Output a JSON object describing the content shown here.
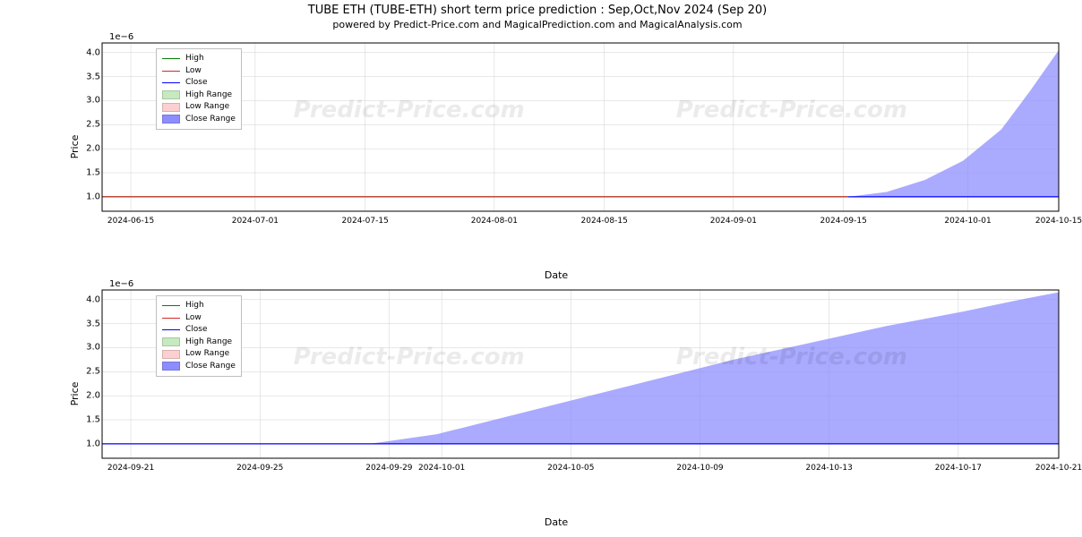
{
  "title": {
    "main": "TUBE ETH (TUBE-ETH) short term price prediction : Sep,Oct,Nov 2024 (Sep 20)",
    "sub": "powered by Predict-Price.com and MagicalPrediction.com and MagicalAnalysis.com",
    "main_fontsize": 13,
    "sub_fontsize": 11
  },
  "watermark": {
    "text_left": "Predict-Price.com",
    "text_right": "Predict-Price.com",
    "color": "rgba(0,0,0,0.08)",
    "fontsize": 26,
    "font_style": "italic",
    "font_weight": "bold"
  },
  "legend": {
    "items": [
      {
        "label": "High",
        "kind": "line",
        "color": "#008000"
      },
      {
        "label": "Low",
        "kind": "line",
        "color": "#d62728"
      },
      {
        "label": "Close",
        "kind": "line",
        "color": "#0000ff"
      },
      {
        "label": "High Range",
        "kind": "patch",
        "color": "#c7e9c0"
      },
      {
        "label": "Low Range",
        "kind": "patch",
        "color": "#fcd0d0"
      },
      {
        "label": "Close Range",
        "kind": "patch",
        "color": "#8d8dff"
      }
    ],
    "border_color": "#bfbfbf",
    "bg_color": "rgba(255,255,255,0.92)",
    "fontsize": 9
  },
  "axis_style": {
    "spine_color": "#000000",
    "grid_color": "#d0d0d0",
    "grid_linewidth": 0.5,
    "tick_fontsize": 10,
    "xtick_fontsize": 9,
    "label_fontsize": 11,
    "bg_color": "#ffffff"
  },
  "panels": [
    {
      "id": "top",
      "type": "line-with-range",
      "ylabel": "Price",
      "xlabel": "Date",
      "y_exponent_label": "1e−6",
      "ylim": [
        0.7,
        4.2
      ],
      "y_ticks": [
        1.0,
        1.5,
        2.0,
        2.5,
        3.0,
        3.5,
        4.0
      ],
      "x_ticks": [
        {
          "pos": 0.03,
          "label": "2024-06-15"
        },
        {
          "pos": 0.16,
          "label": "2024-07-01"
        },
        {
          "pos": 0.275,
          "label": "2024-07-15"
        },
        {
          "pos": 0.41,
          "label": "2024-08-01"
        },
        {
          "pos": 0.525,
          "label": "2024-08-15"
        },
        {
          "pos": 0.66,
          "label": "2024-09-01"
        },
        {
          "pos": 0.775,
          "label": "2024-09-15"
        },
        {
          "pos": 0.905,
          "label": "2024-10-01"
        },
        {
          "pos": 1.0,
          "label": "2024-10-15"
        }
      ],
      "series": {
        "high": {
          "color": "#008000",
          "linewidth": 1.2,
          "points": [
            [
              0.0,
              1.0
            ],
            [
              0.78,
              1.0
            ]
          ]
        },
        "low": {
          "color": "#d62728",
          "linewidth": 1.2,
          "points": [
            [
              0.0,
              1.0
            ],
            [
              0.78,
              1.0
            ]
          ]
        },
        "close": {
          "color": "#0000ff",
          "linewidth": 1.2,
          "points": [
            [
              0.78,
              1.0
            ],
            [
              1.0,
              1.0
            ]
          ]
        }
      },
      "range_fill": {
        "color": "#8d8dff",
        "opacity": 0.75,
        "polygon": [
          [
            0.78,
            1.0
          ],
          [
            0.82,
            1.1
          ],
          [
            0.86,
            1.35
          ],
          [
            0.9,
            1.75
          ],
          [
            0.94,
            2.4
          ],
          [
            0.97,
            3.2
          ],
          [
            1.0,
            4.05
          ],
          [
            1.0,
            1.0
          ]
        ]
      }
    },
    {
      "id": "bottom",
      "type": "line-with-range",
      "ylabel": "Price",
      "xlabel": "Date",
      "y_exponent_label": "1e−6",
      "ylim": [
        0.7,
        4.2
      ],
      "y_ticks": [
        1.0,
        1.5,
        2.0,
        2.5,
        3.0,
        3.5,
        4.0
      ],
      "x_ticks": [
        {
          "pos": 0.03,
          "label": "2024-09-21"
        },
        {
          "pos": 0.165,
          "label": "2024-09-25"
        },
        {
          "pos": 0.3,
          "label": "2024-09-29"
        },
        {
          "pos": 0.355,
          "label": "2024-10-01"
        },
        {
          "pos": 0.49,
          "label": "2024-10-05"
        },
        {
          "pos": 0.625,
          "label": "2024-10-09"
        },
        {
          "pos": 0.76,
          "label": "2024-10-13"
        },
        {
          "pos": 0.895,
          "label": "2024-10-17"
        },
        {
          "pos": 1.0,
          "label": "2024-10-21"
        }
      ],
      "series": {
        "close": {
          "color": "#0000ff",
          "linewidth": 1.2,
          "points": [
            [
              0.0,
              1.0
            ],
            [
              1.0,
              1.0
            ]
          ]
        }
      },
      "range_fill": {
        "color": "#8d8dff",
        "opacity": 0.75,
        "polygon": [
          [
            0.28,
            1.0
          ],
          [
            0.35,
            1.2
          ],
          [
            0.42,
            1.55
          ],
          [
            0.5,
            1.95
          ],
          [
            0.58,
            2.35
          ],
          [
            0.66,
            2.75
          ],
          [
            0.74,
            3.1
          ],
          [
            0.82,
            3.45
          ],
          [
            0.9,
            3.75
          ],
          [
            0.96,
            4.0
          ],
          [
            1.0,
            4.15
          ],
          [
            1.0,
            1.0
          ]
        ]
      }
    }
  ]
}
